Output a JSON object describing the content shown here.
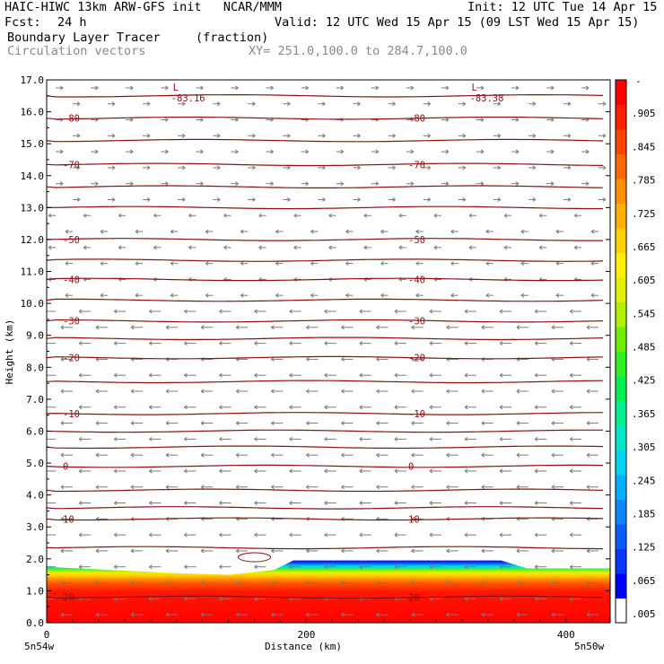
{
  "header": {
    "title_left": "HAIC-HIWC 13km ARW-GFS init   NCAR/MMM",
    "init": "Init: 12 UTC Tue 14 Apr 15",
    "fcst_label": "Fcst:",
    "fcst_value": "24 h",
    "valid": "Valid: 12 UTC Wed 15 Apr 15 (09 LST Wed 15 Apr 15)",
    "field_name": "Boundary Layer Tracer",
    "field_units": "(fraction)",
    "vector_label": "Circulation vectors",
    "xy_range": "XY= 251.0,100.0 to 284.7,100.0"
  },
  "chart_data": {
    "type": "heatmap",
    "xlabel": "Distance (km)",
    "ylabel": "Height (km)",
    "xlim": [
      0,
      434
    ],
    "ylim": [
      0,
      17
    ],
    "x_ticks": [
      0,
      200,
      400
    ],
    "y_ticks": [
      "0.0",
      "1.0",
      "2.0",
      "3.0",
      "4.0",
      "5.0",
      "6.0",
      "7.0",
      "8.0",
      "9.0",
      "10.0",
      "11.0",
      "12.0",
      "13.0",
      "14.0",
      "15.0",
      "16.0",
      "17.0"
    ],
    "x_end_labels": {
      "left": "5n54w",
      "right": "5n50w"
    },
    "colorbar": {
      "ticks": [
        ".005",
        ".065",
        ".125",
        ".185",
        ".245",
        ".305",
        ".365",
        ".425",
        ".485",
        ".545",
        ".605",
        ".665",
        ".725",
        ".785",
        ".845",
        ".905"
      ],
      "top_label": "-",
      "colors": [
        "#ffffff",
        "#0000ff",
        "#0a34ff",
        "#0a5cff",
        "#0a86ff",
        "#00b0ff",
        "#00d4f0",
        "#00e8c8",
        "#00f090",
        "#00f050",
        "#30f020",
        "#70f000",
        "#b0f000",
        "#e0f000",
        "#fff000",
        "#ffd000",
        "#ffb000",
        "#ff9000",
        "#ff6800",
        "#ff4400",
        "#ff2000",
        "#ff0000"
      ]
    },
    "tracer_profile": {
      "x_km": [
        0,
        50,
        100,
        140,
        175,
        190,
        250,
        300,
        350,
        370,
        434
      ],
      "top_height_km": [
        1.75,
        1.65,
        1.55,
        1.5,
        1.65,
        1.95,
        1.95,
        1.95,
        1.95,
        1.7,
        1.7
      ]
    },
    "temperature_contours": [
      {
        "level": -80,
        "height_km": 15.8
      },
      {
        "level": -70,
        "height_km": 14.35
      },
      {
        "level": -50,
        "height_km": 12.0
      },
      {
        "level": -40,
        "height_km": 10.75
      },
      {
        "level": -30,
        "height_km": 9.45
      },
      {
        "level": -20,
        "height_km": 8.3
      },
      {
        "level": -10,
        "height_km": 6.55
      },
      {
        "level": 0,
        "height_km": 4.9
      },
      {
        "level": 10,
        "height_km": 3.25
      },
      {
        "level": 20,
        "height_km": 0.8
      }
    ],
    "unlabeled_contour_heights_km": [
      16.5,
      15.1,
      13.65,
      13.0,
      11.35,
      10.1,
      8.9,
      7.55,
      6.0,
      5.5,
      4.15,
      3.6,
      2.35
    ],
    "lows": [
      {
        "mark": "L",
        "value": "-83.16",
        "x_km": 100,
        "height_km": 16.55
      },
      {
        "mark": "L",
        "value": "-83.38",
        "x_km": 330,
        "height_km": 16.55
      }
    ],
    "wind_vector_bands": [
      {
        "from_km": 0,
        "to_km": 10,
        "direction": "west",
        "strength": "moderate"
      },
      {
        "from_km": 10,
        "to_km": 13,
        "direction": "west",
        "strength": "weak"
      },
      {
        "from_km": 13,
        "to_km": 17,
        "direction": "east",
        "strength": "weak"
      }
    ]
  }
}
